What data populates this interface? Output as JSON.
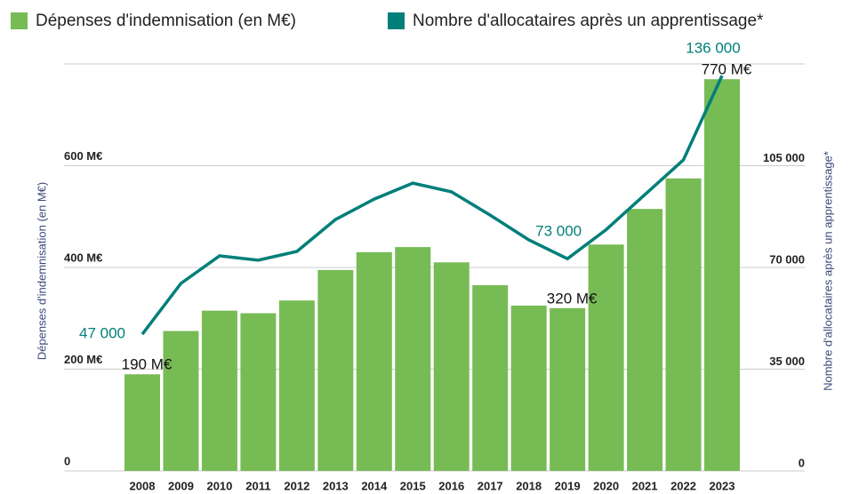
{
  "chart_data": {
    "type": "bar-line",
    "categories": [
      "2008",
      "2009",
      "2010",
      "2011",
      "2012",
      "2013",
      "2014",
      "2015",
      "2016",
      "2017",
      "2018",
      "2019",
      "2020",
      "2021",
      "2022",
      "2023"
    ],
    "series": [
      {
        "name": "Dépenses d'indemnisation (en M€)",
        "color": "#77bb55",
        "type": "bar",
        "values": [
          190,
          275,
          315,
          310,
          335,
          395,
          430,
          440,
          410,
          365,
          325,
          320,
          445,
          515,
          575,
          770
        ],
        "value_labels": [
          "190 M€",
          null,
          null,
          null,
          null,
          null,
          null,
          null,
          null,
          null,
          null,
          "320 M€",
          null,
          null,
          null,
          "770 M€"
        ]
      },
      {
        "name": "Nombre d'allocataires après un apprentissage*",
        "color": "#007f7a",
        "type": "line",
        "axis": "y2",
        "values": [
          47000,
          64500,
          74000,
          72500,
          75500,
          86500,
          93500,
          99000,
          96000,
          88000,
          79500,
          73000,
          83000,
          95000,
          107000,
          136000
        ],
        "value_labels": [
          "47 000",
          null,
          null,
          null,
          null,
          null,
          null,
          null,
          null,
          null,
          null,
          "73 000",
          null,
          null,
          null,
          "136 000"
        ]
      }
    ],
    "ylabel": "Dépenses d'indemnisation (en M€)",
    "y2label": "Nombre d'allocataires après un apprentissage*",
    "ylim": [
      0,
      800
    ],
    "yticks": [
      0,
      {
        "value": 200,
        "label": "200 M€"
      },
      {
        "value": 400,
        "label": "400 M€"
      },
      {
        "value": 600,
        "label": "600 M€"
      }
    ],
    "y2lim": [
      0,
      140000
    ],
    "y2ticks": [
      0,
      {
        "value": 35000,
        "label": "35 000"
      },
      {
        "value": 70000,
        "label": "70 000"
      },
      {
        "value": 105000,
        "label": "105 000"
      }
    ],
    "grid": true
  }
}
